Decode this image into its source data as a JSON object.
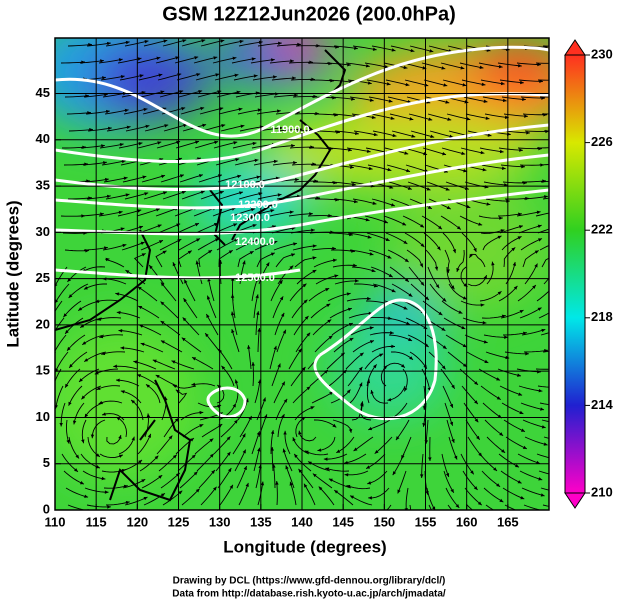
{
  "title": "GSM 12Z12Jun2026 (200.0hPa)",
  "x_axis": {
    "label": "Longitude (degrees)",
    "lim": [
      110,
      170
    ],
    "ticks": [
      110,
      115,
      120,
      125,
      130,
      135,
      140,
      145,
      150,
      155,
      160,
      165
    ]
  },
  "y_axis": {
    "label": "Latitude  (degrees)",
    "lim": [
      0,
      51
    ],
    "ticks": [
      0,
      5,
      10,
      15,
      20,
      25,
      30,
      35,
      40,
      45
    ]
  },
  "colorbar": {
    "lim": [
      210,
      230
    ],
    "ticks": [
      210,
      214,
      218,
      222,
      226,
      230
    ]
  },
  "contour_labels": [
    "11900.0",
    "12100.0",
    "12200.0",
    "12300.0",
    "12400.0",
    "12500.0"
  ],
  "credits": [
    "Drawing by DCL (https://www.gfd-dennou.org/library/dcl/)",
    "Data from http://database.rish.kyoto-u.ac.jp/arch/jmadata/"
  ]
}
